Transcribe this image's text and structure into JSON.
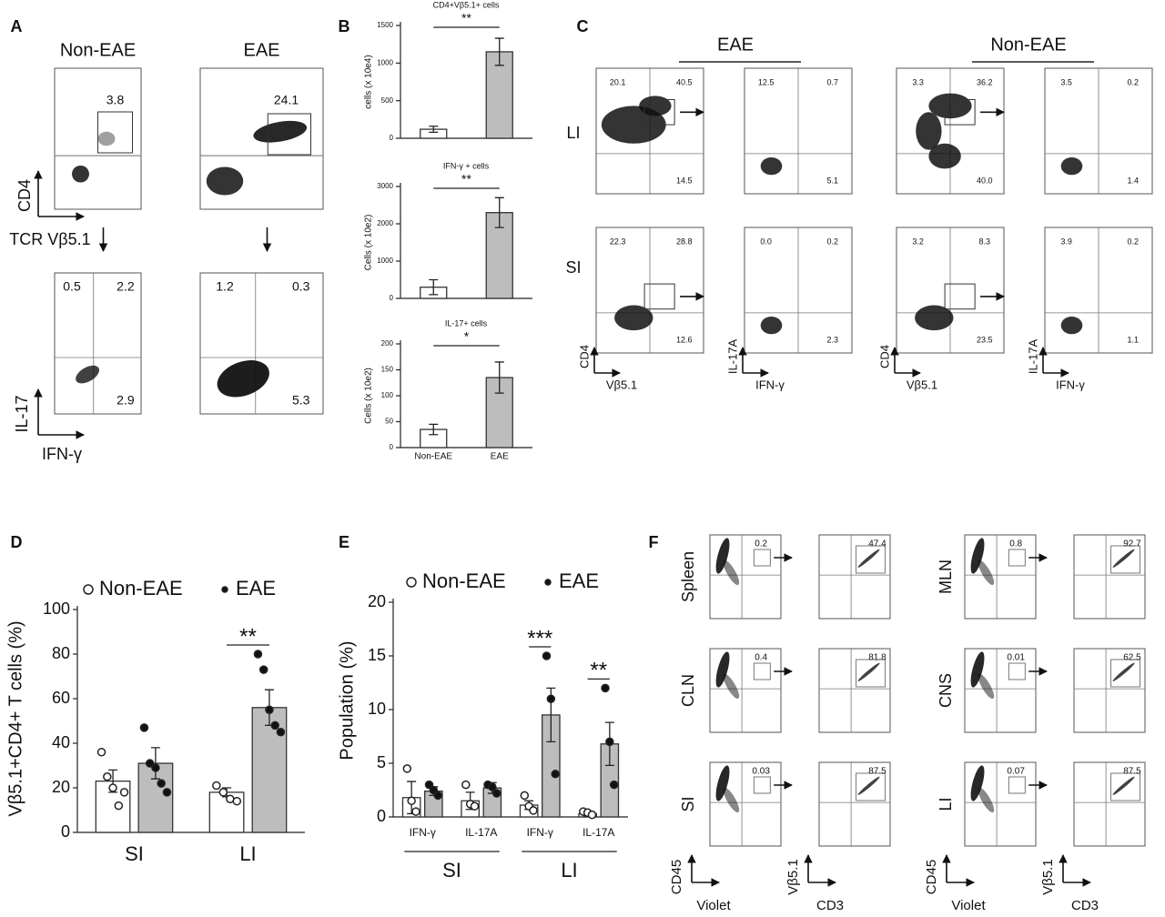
{
  "panel_a": {
    "label": "A",
    "col_titles": [
      "Non-EAE",
      "EAE"
    ],
    "top_gates": [
      "3.8",
      "24.1"
    ],
    "top_y": "CD4",
    "top_x": "TCR Vβ5.1",
    "bottom_quadrants": [
      [
        "0.5",
        "2.2",
        "2.9"
      ],
      [
        "1.2",
        "0.3",
        "5.3"
      ]
    ],
    "bottom_y": "IL-17",
    "bottom_x": "IFN-γ"
  },
  "panel_b": {
    "label": "B",
    "charts": [
      {
        "type": "bar",
        "title": "CD4+Vβ5.1+ cells",
        "ylabel": "cells (x 10e4)",
        "values": [
          120,
          1150
        ],
        "errors": [
          40,
          180
        ],
        "color": "#bdbdbd",
        "ylim": [
          0,
          1500
        ],
        "yticks": [
          0,
          500,
          1000,
          1500
        ],
        "significance": "**"
      },
      {
        "type": "bar",
        "title": "IFN-γ + cells",
        "ylabel": "Cells (x 10e2)",
        "values": [
          300,
          2300
        ],
        "errors": [
          200,
          400
        ],
        "color": "#bdbdbd",
        "ylim": [
          0,
          3000
        ],
        "yticks": [
          0,
          1000,
          2000,
          3000
        ],
        "significance": "**"
      },
      {
        "type": "bar",
        "title": "IL-17+ cells",
        "ylabel": "Cells (x 10e2)",
        "categories": [
          "Non-EAE",
          "EAE"
        ],
        "values": [
          35,
          135
        ],
        "errors": [
          10,
          30
        ],
        "color": "#bdbdbd",
        "ylim": [
          0,
          200
        ],
        "yticks": [
          0,
          50,
          100,
          150,
          200
        ],
        "significance": "*"
      }
    ]
  },
  "panel_c": {
    "label": "C",
    "groups": [
      "EAE",
      "Non-EAE"
    ],
    "rows": [
      "LI",
      "SI"
    ],
    "plots": [
      [
        [
          "20.1",
          "40.5",
          "14.5"
        ],
        [
          "12.5",
          "0.7",
          "5.1"
        ],
        [
          "3.3",
          "36.2",
          "40.0"
        ],
        [
          "3.5",
          "0.2",
          "1.4"
        ]
      ],
      [
        [
          "22.3",
          "28.8",
          "12.6"
        ],
        [
          "0.0",
          "0.2",
          "2.3"
        ],
        [
          "3.2",
          "8.3",
          "23.5"
        ],
        [
          "3.9",
          "0.2",
          "1.1"
        ]
      ]
    ],
    "axes": [
      [
        "CD4",
        "Vβ5.1"
      ],
      [
        "IL-17A",
        "IFN-γ"
      ]
    ]
  },
  "panel_d": {
    "type": "bar",
    "label": "D",
    "ylabel": "Vβ5.1+CD4+ T cells (%)",
    "categories": [
      "SI",
      "LI"
    ],
    "series": [
      {
        "name": "Non-EAE",
        "color": "#ffffff",
        "point_color": "#ffffff",
        "values": [
          23,
          18
        ],
        "errors": [
          5,
          2
        ],
        "points": [
          [
            36,
            25,
            20,
            12,
            18
          ],
          [
            21,
            18,
            15,
            14
          ]
        ]
      },
      {
        "name": "EAE",
        "color": "#bdbdbd",
        "point_color": "#111111",
        "values": [
          31,
          56
        ],
        "errors": [
          7,
          8
        ],
        "points": [
          [
            47,
            31,
            29,
            22,
            18
          ],
          [
            80,
            73,
            55,
            48,
            45
          ]
        ]
      }
    ],
    "ylim": [
      0,
      100
    ],
    "yticks": [
      0,
      20,
      40,
      60,
      80,
      100
    ],
    "significance": [
      null,
      "**"
    ]
  },
  "panel_e": {
    "type": "bar",
    "label": "E",
    "ylabel": "Population (%)",
    "categories": [
      "IFN-γ",
      "IL-17A",
      "IFN-γ",
      "IL-17A"
    ],
    "groups": [
      "SI",
      "LI"
    ],
    "series": [
      {
        "name": "Non-EAE",
        "color": "#ffffff",
        "point_color": "#ffffff",
        "values": [
          1.8,
          1.5,
          1.1,
          0.3
        ],
        "errors": [
          1.5,
          0.8,
          0.4,
          0.2
        ],
        "points": [
          [
            4.5,
            1.5,
            0.5
          ],
          [
            3,
            1.2,
            1
          ],
          [
            2,
            1,
            0.6
          ],
          [
            0.5,
            0.4,
            0.2
          ]
        ]
      },
      {
        "name": "EAE",
        "color": "#bdbdbd",
        "point_color": "#111111",
        "values": [
          2.4,
          2.7,
          9.5,
          6.8
        ],
        "errors": [
          0.4,
          0.5,
          2.5,
          2
        ],
        "points": [
          [
            3,
            2.5,
            2
          ],
          [
            3,
            2.8,
            2.2
          ],
          [
            15,
            11,
            4
          ],
          [
            12,
            7,
            3
          ]
        ]
      }
    ],
    "ylim": [
      0,
      20
    ],
    "yticks": [
      0,
      5,
      10,
      15,
      20
    ],
    "significance": [
      null,
      null,
      "***",
      "**"
    ]
  },
  "panel_f": {
    "label": "F",
    "tissues": [
      [
        "Spleen",
        "0.2",
        "47.4"
      ],
      [
        "CLN",
        "0.4",
        "81.8"
      ],
      [
        "SI",
        "0.03",
        "87.5"
      ],
      [
        "MLN",
        "0.8",
        "92.7"
      ],
      [
        "CNS",
        "0.01",
        "62.5"
      ],
      [
        "LI",
        "0.07",
        "87.5"
      ]
    ],
    "axes": [
      [
        "CD45",
        "Violet"
      ],
      [
        "Vβ5.1",
        "CD3"
      ]
    ]
  }
}
